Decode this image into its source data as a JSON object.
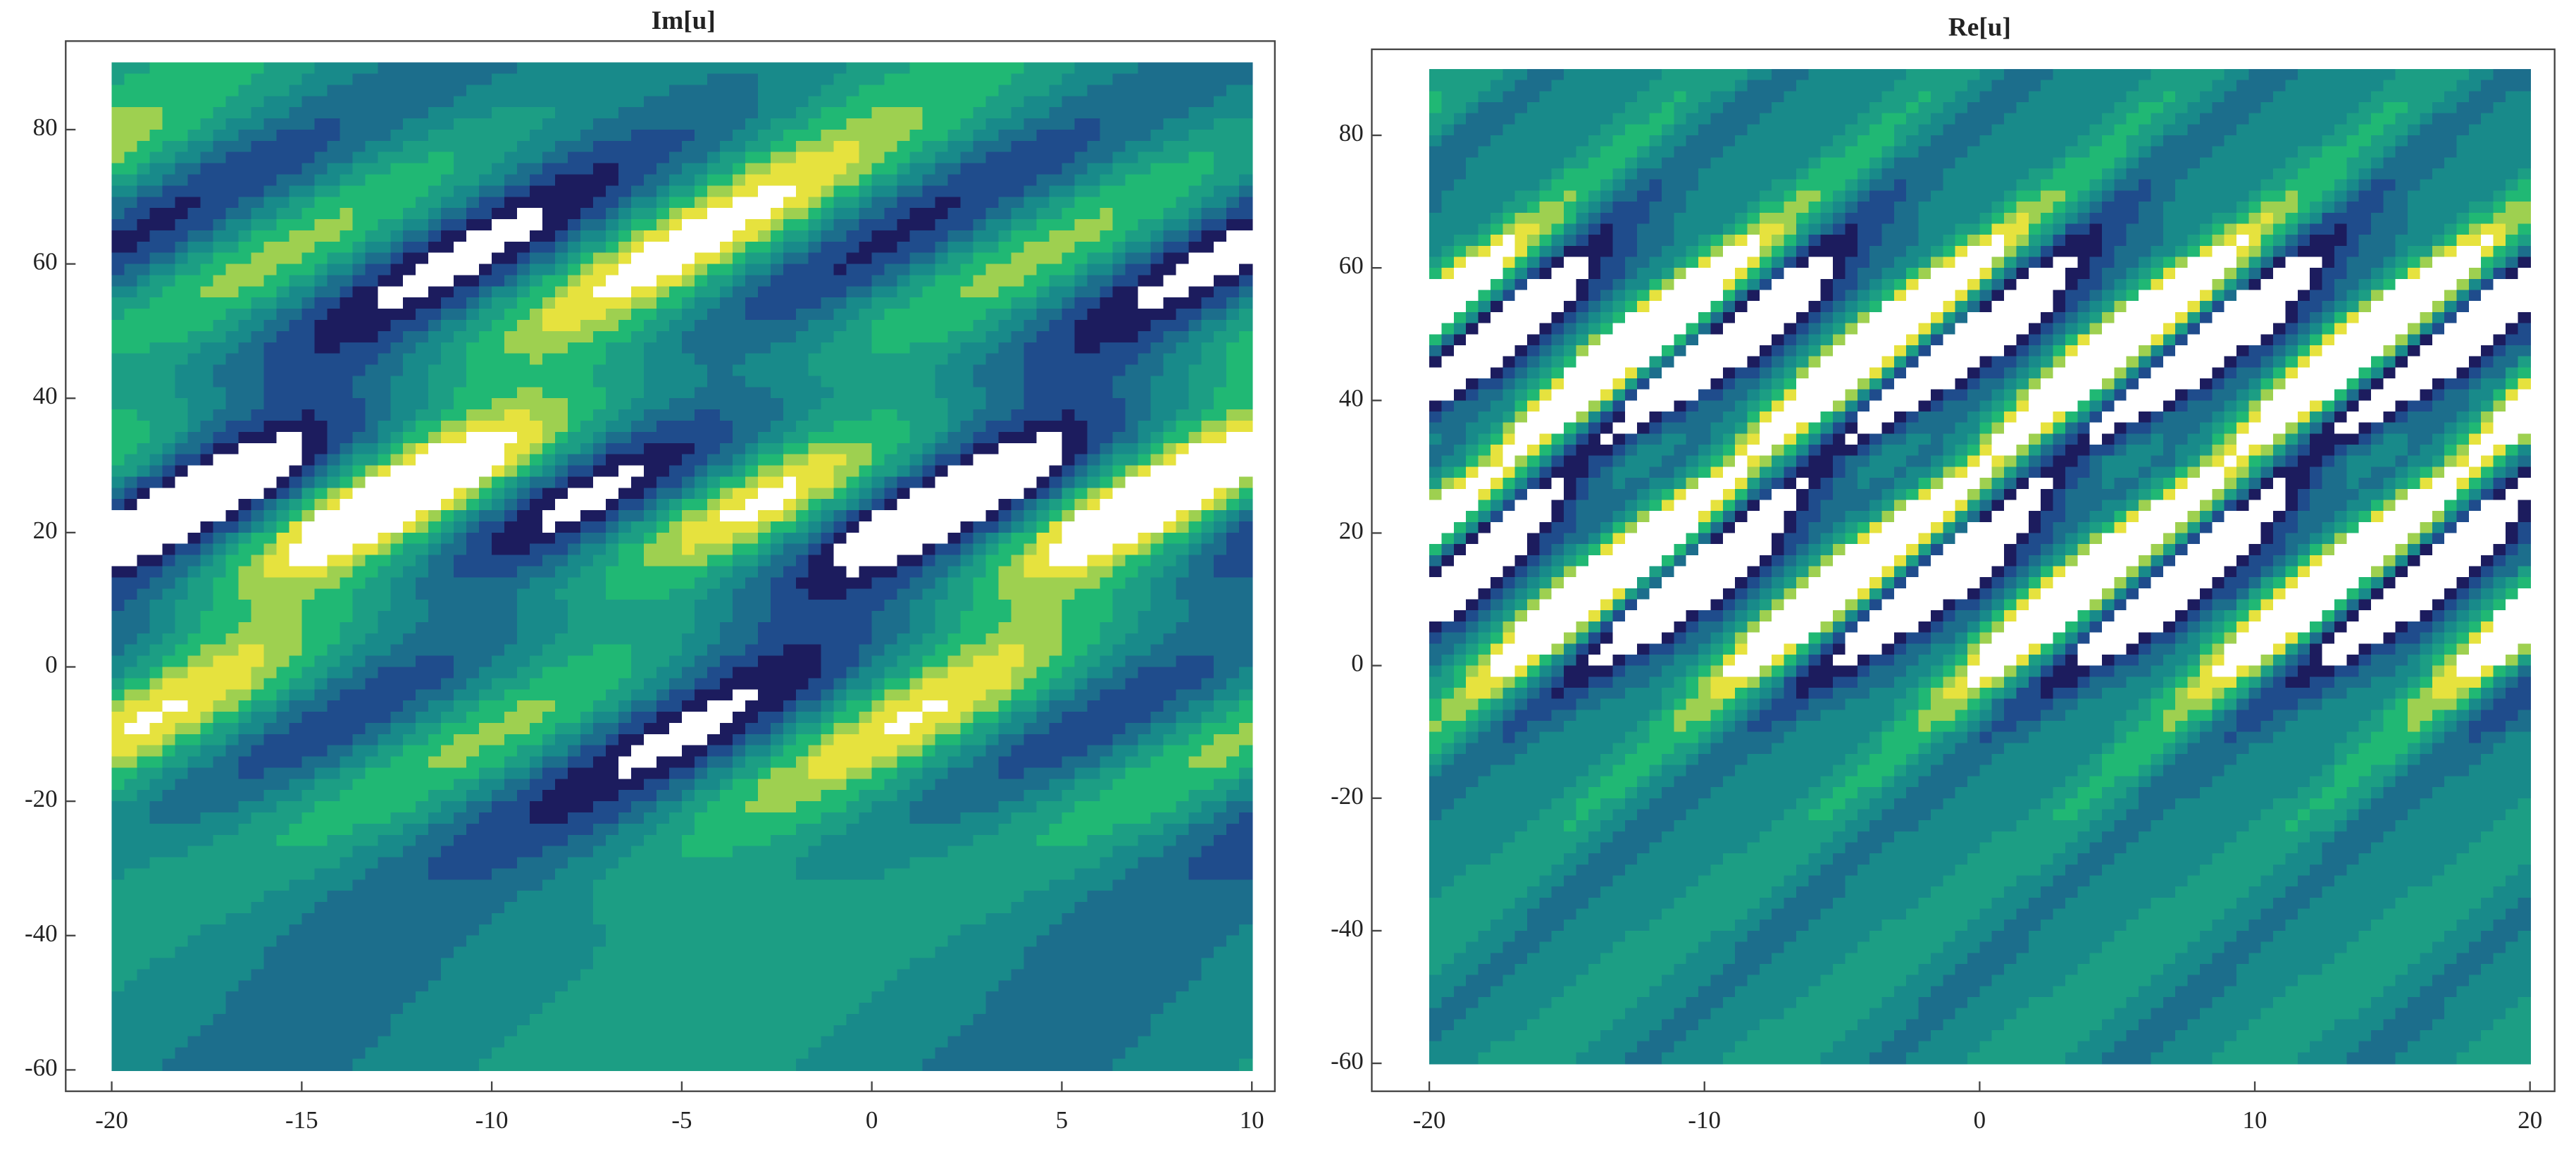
{
  "chart_data": [
    {
      "type": "contour",
      "title": "Im[u]",
      "xlim": [
        -20,
        10
      ],
      "ylim": [
        -60,
        90
      ],
      "xticks": [
        -20,
        -15,
        -10,
        -5,
        0,
        5,
        10
      ],
      "yticks": [
        -60,
        -40,
        -20,
        0,
        20,
        40,
        60,
        80
      ]
    },
    {
      "type": "contour",
      "title": "Re[u]",
      "xlim": [
        -20,
        20
      ],
      "ylim": [
        -60,
        90
      ],
      "xticks": [
        -20,
        -10,
        0,
        10,
        20
      ],
      "yticks": [
        -60,
        -40,
        -20,
        0,
        20,
        40,
        60,
        80
      ]
    }
  ]
}
